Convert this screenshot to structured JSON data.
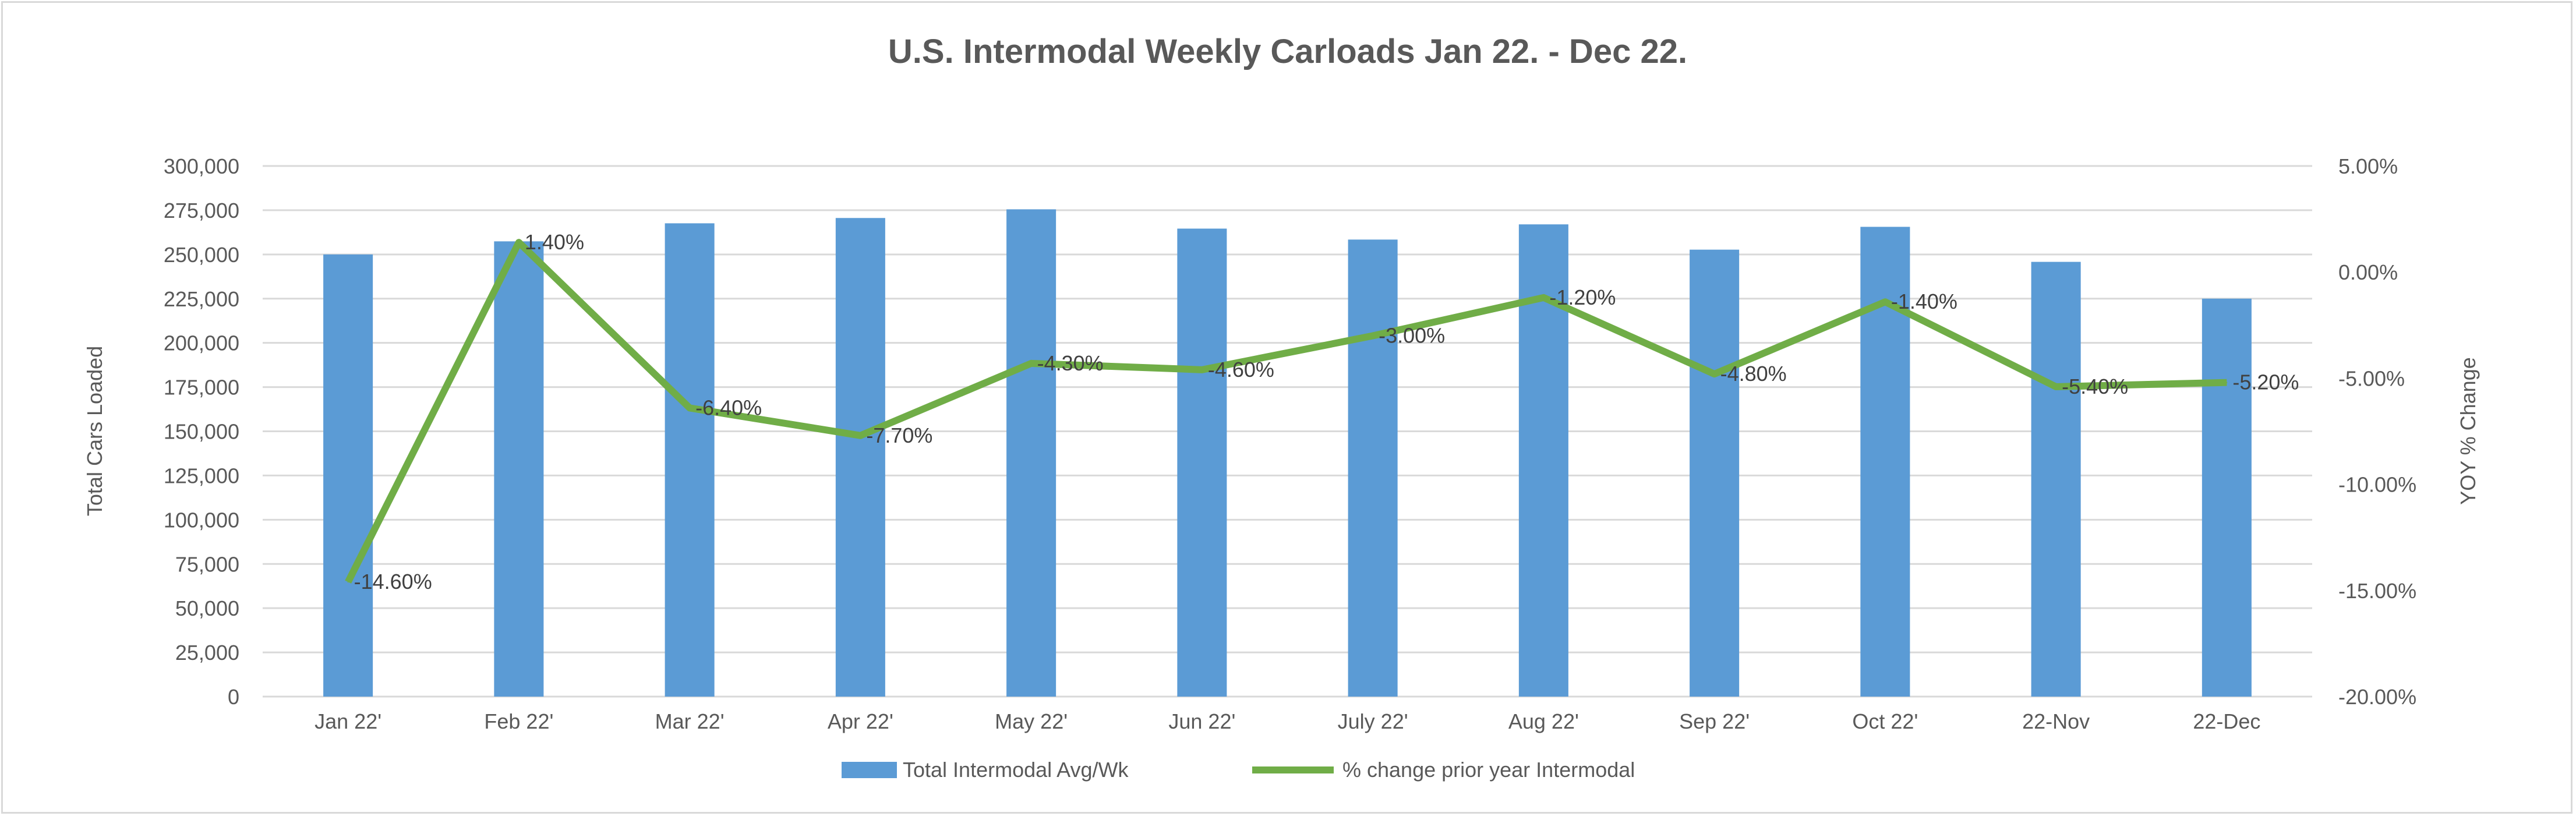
{
  "chart_data": {
    "type": "bar+line",
    "title": "U.S. Intermodal Weekly Carloads Jan 22. - Dec 22.",
    "categories": [
      "Jan 22'",
      "Feb 22'",
      "Mar 22'",
      "Apr 22'",
      "May 22'",
      "Jun 22'",
      "July 22'",
      "Aug 22'",
      "Sep 22'",
      "Oct 22'",
      "22-Nov",
      "22-Dec"
    ],
    "ylabel": "Total Cars Loaded",
    "y2label": "YOY % Change",
    "ylim": [
      0,
      300000
    ],
    "y2lim": [
      -20,
      5
    ],
    "yticks": [
      "0",
      "25,000",
      "50,000",
      "75,000",
      "100,000",
      "125,000",
      "150,000",
      "175,000",
      "200,000",
      "225,000",
      "250,000",
      "275,000",
      "300,000"
    ],
    "y2ticks": [
      "-20.00%",
      "-15.00%",
      "-10.00%",
      "-5.00%",
      "0.00%",
      "5.00%"
    ],
    "grid": true,
    "legend_position": "bottom",
    "series": [
      {
        "name": "Total Intermodal Avg/Wk",
        "type": "bar",
        "axis": "left",
        "color": "#5b9bd5",
        "values": [
          250000,
          257400,
          267600,
          270600,
          275500,
          264600,
          258400,
          267000,
          252700,
          265600,
          245800,
          225000
        ]
      },
      {
        "name": "% change prior year Intermodal",
        "type": "line",
        "axis": "right",
        "color": "#70ad47",
        "values": [
          -14.6,
          1.4,
          -6.4,
          -7.7,
          -4.3,
          -4.6,
          -3.0,
          -1.2,
          -4.8,
          -1.4,
          -5.4,
          -5.2
        ],
        "labels": [
          "-14.60%",
          "1.40%",
          "-6.40%",
          "-7.70%",
          "-4.30%",
          "-4.60%",
          "-3.00%",
          "-1.20%",
          "-4.80%",
          "-1.40%",
          "-5.40%",
          "-5.20%"
        ]
      }
    ]
  }
}
